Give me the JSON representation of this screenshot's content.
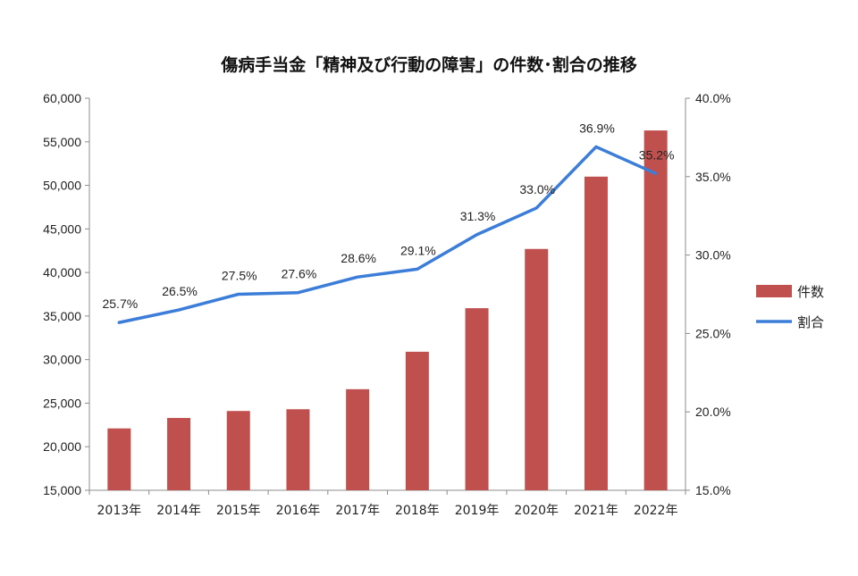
{
  "chart_data": {
    "type": "bar",
    "title": "傷病手当金「精神及び行動の障害」の件数･割合の推移",
    "categories": [
      "2013年",
      "2014年",
      "2015年",
      "2016年",
      "2017年",
      "2018年",
      "2019年",
      "2020年",
      "2021年",
      "2022年"
    ],
    "series": [
      {
        "name": "件数",
        "type": "bar",
        "axis": "left",
        "values": [
          22100,
          23300,
          24100,
          24300,
          26600,
          30900,
          35900,
          42700,
          51000,
          56300
        ]
      },
      {
        "name": "割合",
        "type": "line",
        "axis": "right",
        "values": [
          25.7,
          26.5,
          27.5,
          27.6,
          28.6,
          29.1,
          31.3,
          33.0,
          36.9,
          35.2
        ],
        "labels": [
          "25.7%",
          "26.5%",
          "27.5%",
          "27.6%",
          "28.6%",
          "29.1%",
          "31.3%",
          "33.0%",
          "36.9%",
          "35.2%"
        ]
      }
    ],
    "y_left": {
      "ylim": [
        15000,
        60000
      ],
      "ticks": [
        "15,000",
        "20,000",
        "25,000",
        "30,000",
        "35,000",
        "40,000",
        "45,000",
        "50,000",
        "55,000",
        "60,000"
      ]
    },
    "y_right": {
      "ylim": [
        15.0,
        40.0
      ],
      "ticks": [
        "15.0%",
        "20.0%",
        "25.0%",
        "30.0%",
        "35.0%",
        "40.0%"
      ]
    },
    "grid": false,
    "legend": "right",
    "colors": {
      "bar": "#c0504d",
      "line": "#3b7dd8",
      "axis": "#8c8c8c"
    }
  }
}
